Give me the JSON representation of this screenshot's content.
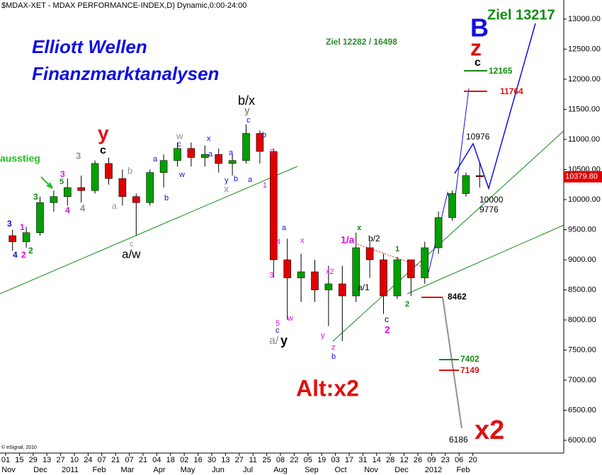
{
  "chart_data": {
    "type": "candlestick",
    "title": "$MDAX-XET - MDAX PERFORMANCE-INDEX,D) Dynamic,0:00-24:00",
    "open": [
      9400,
      9300,
      9450,
      9950,
      10050,
      10200,
      10150,
      10600,
      10350,
      10050,
      9950,
      10450,
      10650,
      10850,
      10700,
      10750,
      10600,
      10650,
      11100,
      10800,
      9000,
      8700,
      8800,
      8500,
      8600,
      8400,
      9200,
      9000,
      8400,
      9000,
      8700,
      9200,
      9700,
      10100,
      10400
    ],
    "high": [
      9500,
      9550,
      10050,
      10150,
      10350,
      10400,
      10650,
      10700,
      10500,
      10100,
      10500,
      10750,
      10950,
      10950,
      10900,
      10850,
      10750,
      11250,
      11150,
      10850,
      9350,
      9100,
      9000,
      8900,
      8900,
      9450,
      9300,
      9100,
      9050,
      9000,
      9300,
      9800,
      10150,
      10450,
      10600
    ],
    "low": [
      9150,
      9200,
      9400,
      9800,
      9900,
      9950,
      10100,
      10250,
      9900,
      9400,
      9900,
      10200,
      10550,
      10550,
      10550,
      10450,
      10400,
      10600,
      10600,
      8700,
      8000,
      8300,
      8300,
      7900,
      7650,
      8300,
      8700,
      8100,
      8350,
      8400,
      8600,
      9100,
      9650,
      10050,
      10200
    ],
    "close": [
      9300,
      9450,
      9950,
      10050,
      10200,
      10150,
      10600,
      10350,
      10050,
      9950,
      10450,
      10650,
      10850,
      10700,
      10750,
      10600,
      10650,
      11100,
      10800,
      9000,
      8700,
      8800,
      8500,
      8600,
      8400,
      9200,
      9000,
      8400,
      9000,
      8700,
      9200,
      9700,
      10100,
      10400,
      10380
    ],
    "up_color": "#00a000",
    "down_color": "#e00000",
    "ylim": [
      5812,
      13317
    ],
    "yticks": [
      {
        "value": 6000,
        "label": "6000.00"
      },
      {
        "value": 6500,
        "label": "6500.00"
      },
      {
        "value": 7000,
        "label": "7000.00"
      },
      {
        "value": 7500,
        "label": "7500.00"
      },
      {
        "value": 8000,
        "label": "8000.00"
      },
      {
        "value": 8500,
        "label": "8500.00"
      },
      {
        "value": 9000,
        "label": "9000.00"
      },
      {
        "value": 9500,
        "label": "9500.00"
      },
      {
        "value": 10000,
        "label": "10000.00"
      },
      {
        "value": 10500,
        "label": "10500.00"
      },
      {
        "value": 11000,
        "label": "11000.00"
      },
      {
        "value": 11500,
        "label": "11500.00"
      },
      {
        "value": 12000,
        "label": "12000.00"
      },
      {
        "value": 12500,
        "label": "12500.00"
      },
      {
        "value": 13000,
        "label": "13000.00"
      }
    ],
    "last_value": 10379.8,
    "last_value_label": "10379.80",
    "x_day_labels": [
      "01",
      "15",
      "29",
      "13",
      "27",
      "10",
      "24",
      "07",
      "21",
      "07",
      "21",
      "04",
      "18",
      "02",
      "16",
      "30",
      "13",
      "27",
      "11",
      "25",
      "08",
      "22",
      "05",
      "19",
      "03",
      "17",
      "31",
      "14",
      "28",
      "12",
      "26",
      "09",
      "23",
      "06",
      "20"
    ],
    "x_month_labels": [
      "Nov",
      "Dec",
      "2011",
      "Feb",
      "Mar",
      "Apr",
      "May",
      "Jun",
      "Jul",
      "Aug",
      "Sep",
      "Oct",
      "Nov",
      "Dec",
      "2012",
      "Feb"
    ],
    "annotations": [
      {
        "text": "Elliott Wellen",
        "color": "#1010e0"
      },
      {
        "text": "Finanzmarktanalysen",
        "color": "#1010e0"
      },
      {
        "text": "Ziel 12282 / 16498",
        "color": "#2a8a2a"
      },
      {
        "text": "Ziel 13217",
        "color": "#138a13"
      },
      {
        "text": "B",
        "color": "#1010e0"
      },
      {
        "text": "z",
        "color": "#e01010"
      },
      {
        "text": "c",
        "color": "#000000"
      },
      {
        "text": "12165",
        "color": "#138a13"
      },
      {
        "text": "11764",
        "color": "#e01010"
      },
      {
        "text": "10976",
        "color": "#000000"
      },
      {
        "text": "10000",
        "color": "#000000"
      },
      {
        "text": "9776",
        "color": "#000000"
      },
      {
        "text": "8462",
        "color": "#000000"
      },
      {
        "text": "7402",
        "color": "#138a13"
      },
      {
        "text": "7149",
        "color": "#e01010"
      },
      {
        "text": "6186",
        "color": "#000000"
      },
      {
        "text": "x2",
        "color": "#e01010"
      },
      {
        "text": "Alt:x2",
        "color": "#e01010"
      },
      {
        "text": "y",
        "color": "#e01010"
      },
      {
        "text": "c",
        "color": "#000000"
      },
      {
        "text": "b/x",
        "color": "#000000"
      },
      {
        "text": "y",
        "color": "#909090"
      },
      {
        "text": "c",
        "color": "#1010e0"
      },
      {
        "text": "ausstieg",
        "color": "#20c020"
      },
      {
        "text": "a/w",
        "color": "#000000"
      },
      {
        "text": "c",
        "color": "#909090"
      },
      {
        "text": "a/",
        "color": "#909090"
      },
      {
        "text": "y",
        "color": "#000000"
      },
      {
        "text": "5",
        "color": "#e010e0"
      },
      {
        "text": "c",
        "color": "#1010e0"
      },
      {
        "text": "1/a",
        "color": "#e010e0"
      },
      {
        "text": "x",
        "color": "#138a13"
      },
      {
        "text": "b/2",
        "color": "#000000"
      },
      {
        "text": "1",
        "color": "#138a13"
      },
      {
        "text": "a/1",
        "color": "#000000"
      },
      {
        "text": "2",
        "color": "#138a13"
      },
      {
        "text": "c",
        "color": "#000000"
      },
      {
        "text": "2",
        "color": "#e010e0"
      },
      {
        "text": "z",
        "color": "#e010e0"
      },
      {
        "text": "b",
        "color": "#1010e0"
      },
      {
        "text": "y",
        "color": "#e010e0"
      },
      {
        "text": "x2",
        "color": "#e010e0"
      },
      {
        "text": "w",
        "color": "#e010e0"
      },
      {
        "text": "x",
        "color": "#e010e0"
      },
      {
        "text": "a",
        "color": "#1010e0"
      },
      {
        "text": "4",
        "color": "#e010e0"
      },
      {
        "text": "3",
        "color": "#e010e0"
      },
      {
        "text": "1",
        "color": "#e010e0"
      },
      {
        "text": "2",
        "color": "#e010e0"
      },
      {
        "text": "b",
        "color": "#1010e0"
      },
      {
        "text": "a",
        "color": "#1010e0"
      },
      {
        "text": "y",
        "color": "#1010e0"
      },
      {
        "text": "b",
        "color": "#1010e0"
      },
      {
        "text": "a",
        "color": "#1010e0"
      },
      {
        "text": "x",
        "color": "#909090"
      },
      {
        "text": "x",
        "color": "#1010e0"
      },
      {
        "text": "a",
        "color": "#1010e0"
      },
      {
        "text": "w",
        "color": "#909090"
      },
      {
        "text": "c",
        "color": "#1010e0"
      },
      {
        "text": "w",
        "color": "#1010e0"
      },
      {
        "text": "a",
        "color": "#1010e0"
      },
      {
        "text": "b",
        "color": "#1010e0"
      },
      {
        "text": "b",
        "color": "#909090"
      },
      {
        "text": "a",
        "color": "#909090"
      },
      {
        "text": "3",
        "color": "#909090"
      },
      {
        "text": "4",
        "color": "#909090"
      },
      {
        "text": "4",
        "color": "#e010e0"
      },
      {
        "text": "3",
        "color": "#e010e0"
      },
      {
        "text": "5",
        "color": "#138a13"
      },
      {
        "text": "3",
        "color": "#138a13"
      },
      {
        "text": "4",
        "color": "#138a13"
      },
      {
        "text": "2",
        "color": "#138a13"
      },
      {
        "text": "2",
        "color": "#e010e0"
      },
      {
        "text": "4",
        "color": "#1010e0"
      },
      {
        "text": "1",
        "color": "#e010e0"
      },
      {
        "text": "3",
        "color": "#1010e0"
      }
    ],
    "credit": "© eSignal, 2010"
  }
}
